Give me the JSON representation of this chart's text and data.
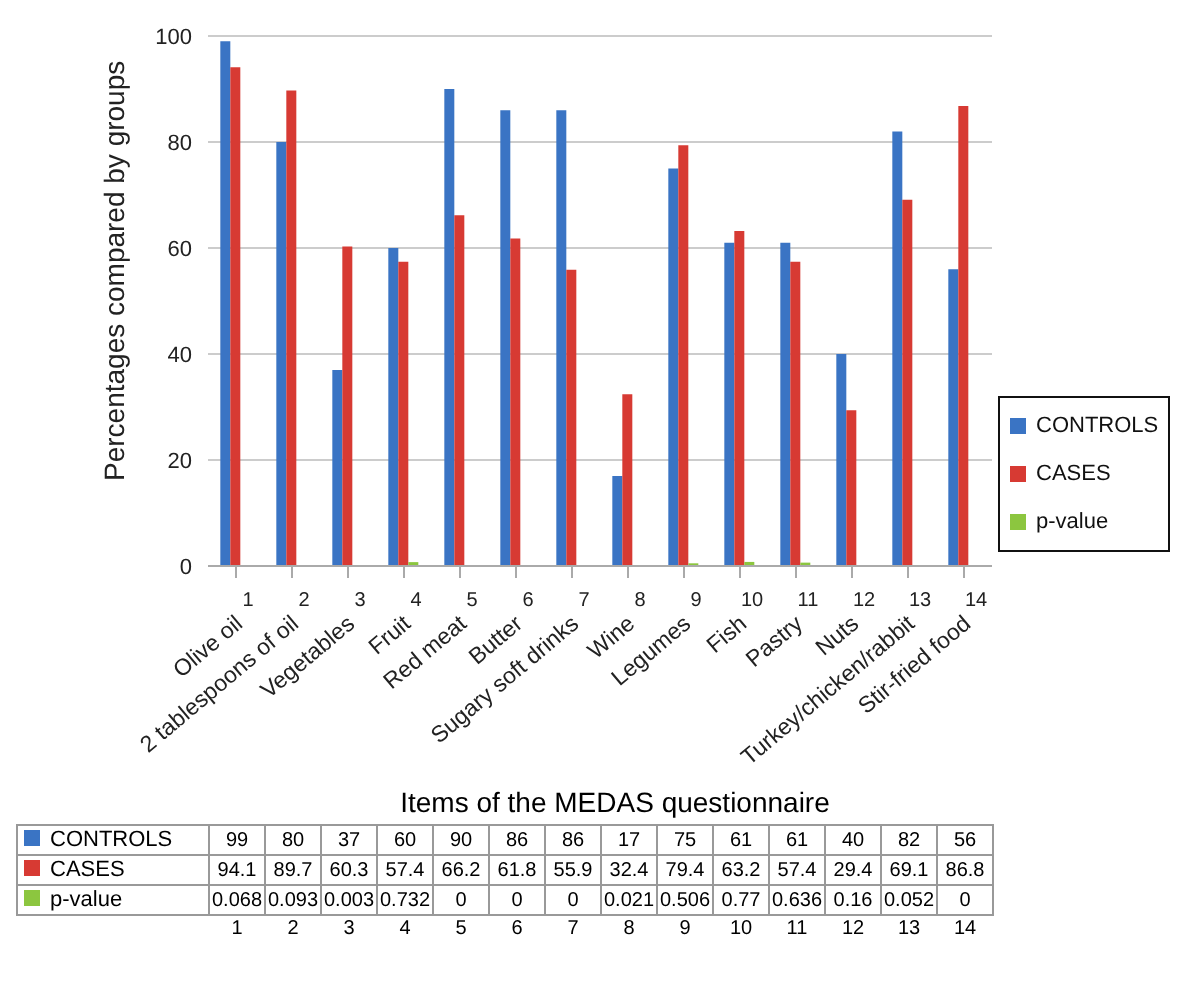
{
  "chart_data": {
    "type": "bar",
    "xlabel": "Items of the MEDAS questionnaire",
    "ylabel": "Percentages compared by groups",
    "categories": [
      "Olive oil",
      "2 tablespoons of oil",
      "Vegetables",
      "Fruit",
      "Red meat",
      "Butter",
      "Sugary soft drinks",
      "Wine",
      "Legumes",
      "Fish",
      "Pastry",
      "Nuts",
      "Turkey/chicken/rabbit",
      "Stir-fried food"
    ],
    "series": [
      {
        "name": "CONTROLS",
        "color": "#3a74c4",
        "values": [
          99,
          80,
          37,
          60,
          90,
          86,
          86,
          17,
          75,
          61,
          61,
          40,
          82,
          56
        ]
      },
      {
        "name": "CASES",
        "color": "#d73a33",
        "values": [
          94.1,
          89.7,
          60.3,
          57.4,
          66.2,
          61.8,
          55.9,
          32.4,
          79.4,
          63.2,
          57.4,
          29.4,
          69.1,
          86.8
        ]
      },
      {
        "name": "p-value",
        "color": "#8cc63f",
        "values": [
          0.068,
          0.093,
          0.003,
          0.732,
          0,
          0,
          0,
          0.021,
          0.506,
          0.77,
          0.636,
          0.16,
          0.052,
          0
        ]
      }
    ],
    "ylim": [
      0,
      100
    ],
    "yticks": [
      0,
      20,
      40,
      60,
      80,
      100
    ],
    "grid": "y",
    "legend": "right",
    "data_labels": true,
    "annotations": [
      "1",
      "2",
      "3",
      "4",
      "5",
      "6",
      "7",
      "8",
      "9",
      "10",
      "11",
      "12",
      "13",
      "14"
    ]
  }
}
